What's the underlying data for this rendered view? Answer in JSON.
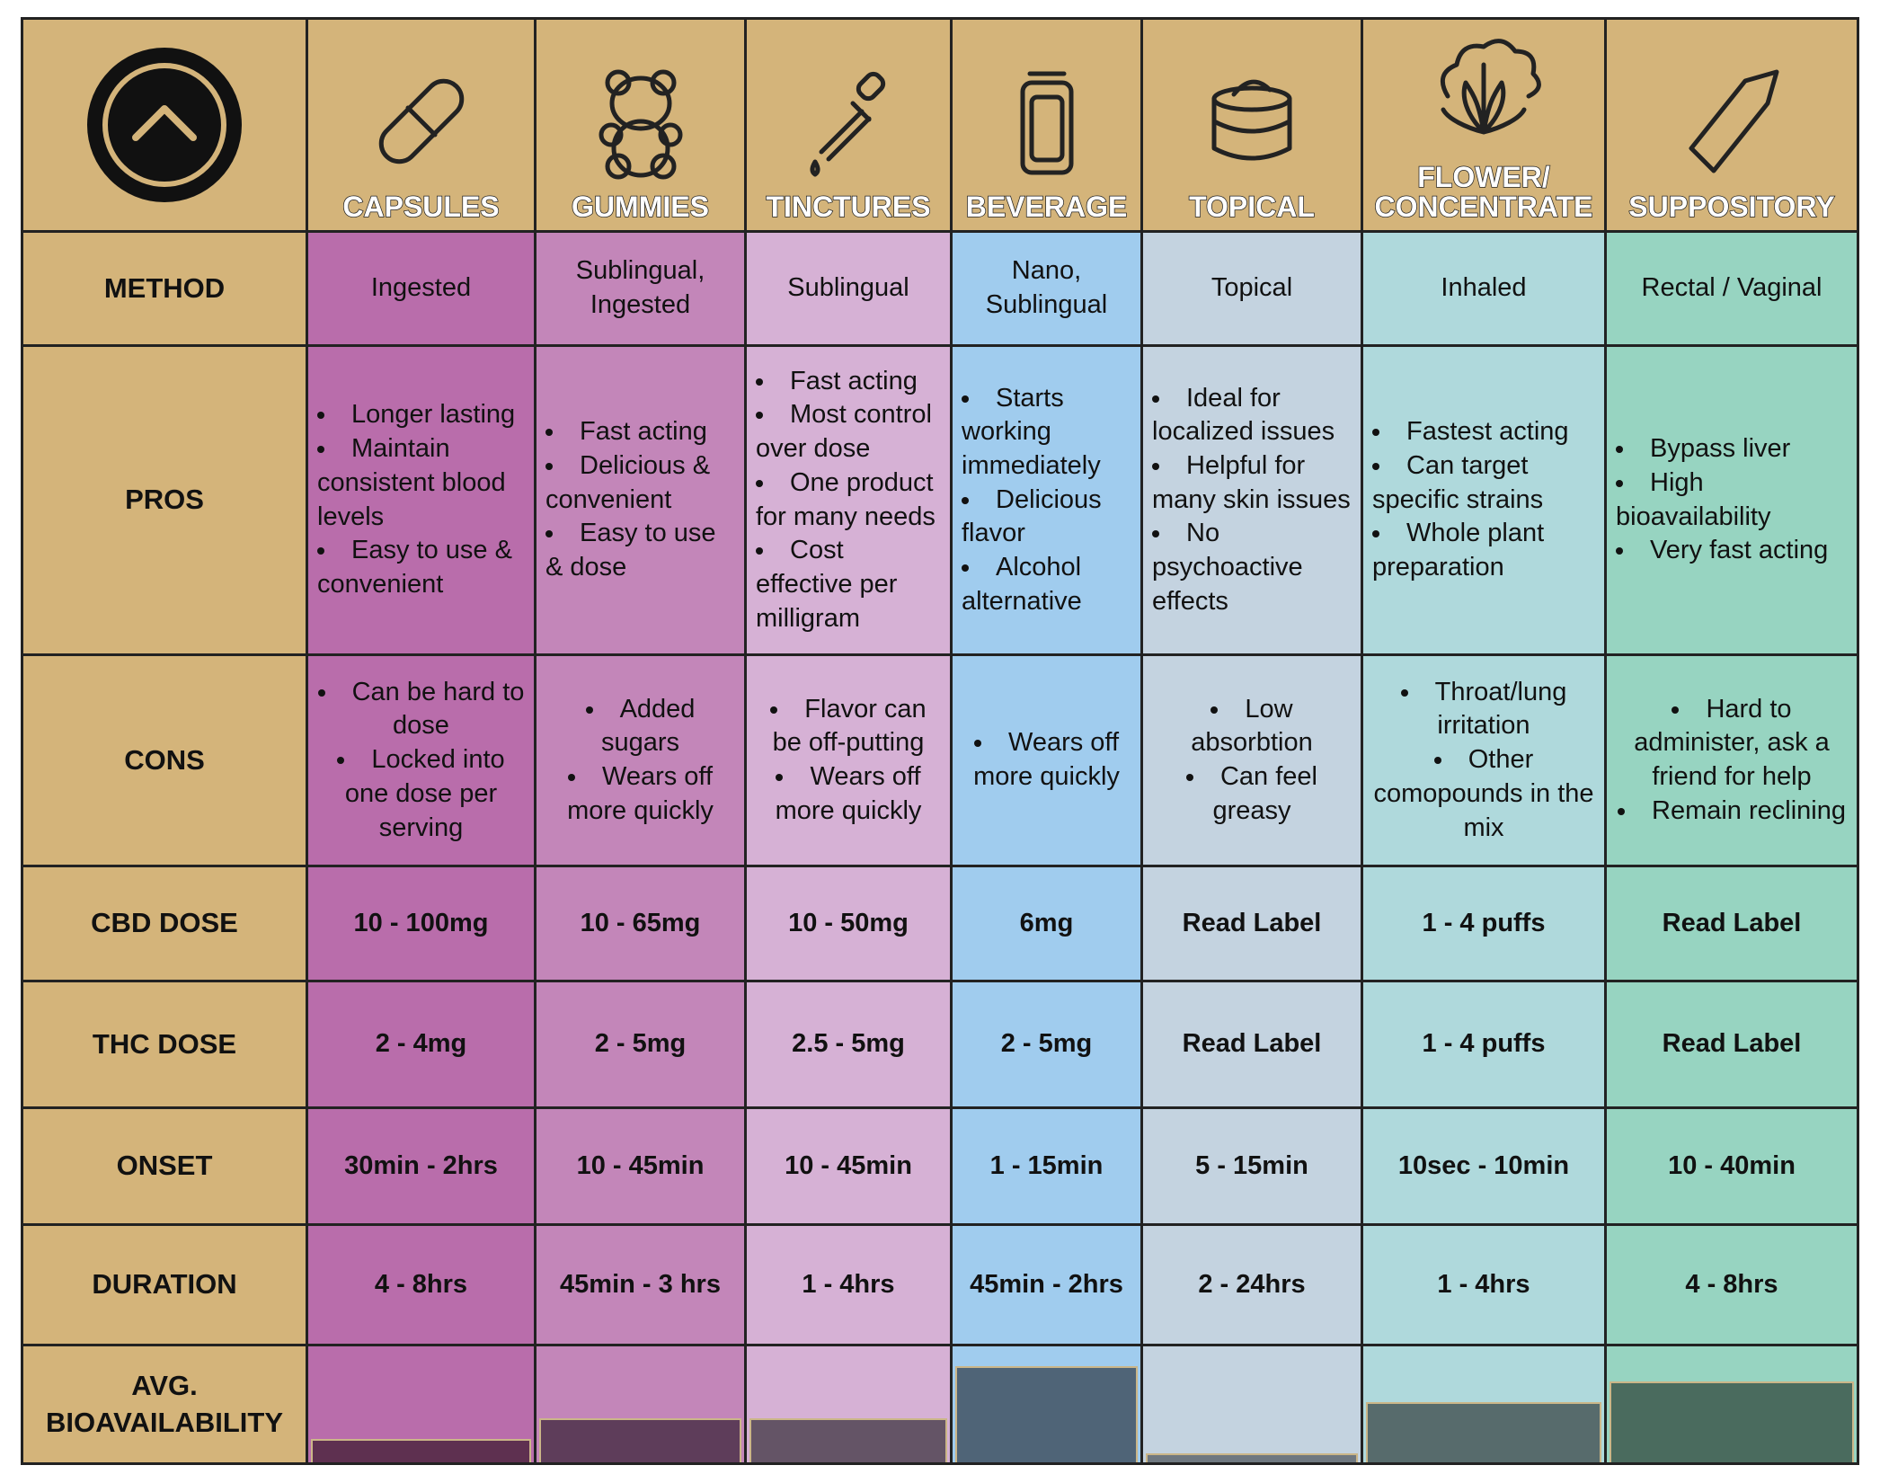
{
  "row_labels": [
    "METHOD",
    "PROS",
    "CONS",
    "CBD DOSE",
    "THC DOSE",
    "ONSET",
    "DURATION",
    "AVG. BIOAVAILABILITY"
  ],
  "header_color": "#d4b47a",
  "columns": [
    {
      "name": "CAPSULES",
      "color": "#b96dab",
      "bar_color": "#5e3050",
      "method": "Ingested",
      "pros": [
        "Longer lasting",
        "Maintain consistent blood levels",
        "Easy to use & convenient"
      ],
      "cons": [
        "Can be hard to dose",
        "Locked into one dose per serving"
      ],
      "cbd_dose": "10 - 100mg",
      "thc_dose": "2 - 4mg",
      "onset": "30min - 2hrs",
      "duration": "4 - 8hrs",
      "bioavailability": 20
    },
    {
      "name": "GUMMIES",
      "color": "#c386b9",
      "bar_color": "#5e3d5a",
      "method": "Sublingual, Ingested",
      "pros": [
        "Fast acting",
        "Delicious & convenient",
        "Easy to use & dose"
      ],
      "cons": [
        "Added sugars",
        "Wears off more quickly"
      ],
      "cbd_dose": "10 - 65mg",
      "thc_dose": "2 - 5mg",
      "onset": "10 - 45min",
      "duration": "45min - 3 hrs",
      "bioavailability": 38
    },
    {
      "name": "TINCTURES",
      "color": "#d6b1d5",
      "bar_color": "#645466",
      "method": "Sublingual",
      "pros": [
        "Fast acting",
        "Most control over dose",
        "One product for many needs",
        "Cost effective per milligram"
      ],
      "cons": [
        "Flavor can be off-putting",
        "Wears off more quickly"
      ],
      "cbd_dose": "10 - 50mg",
      "thc_dose": "2.5 - 5mg",
      "onset": "10 - 45min",
      "duration": "1 - 4hrs",
      "bioavailability": 38
    },
    {
      "name": "BEVERAGE",
      "color": "#a0ccee",
      "bar_color": "#4f6477",
      "method": "Nano, Sublingual",
      "pros": [
        "Starts working immediately",
        "Delicious flavor",
        "Alcohol alternative"
      ],
      "cons": [
        "Wears off more quickly"
      ],
      "cbd_dose": "6mg",
      "thc_dose": "2 - 5mg",
      "onset": "1 - 15min",
      "duration": "45min - 2hrs",
      "bioavailability": 83
    },
    {
      "name": "TOPICAL",
      "color": "#c4d3e0",
      "bar_color": "#6f7880",
      "method": "Topical",
      "pros": [
        "Ideal for localized issues",
        "Helpful for many skin issues",
        "No psychoactive effects"
      ],
      "cons": [
        "Low absorbtion",
        "Can feel greasy"
      ],
      "cbd_dose": "Read Label",
      "thc_dose": "Read Label",
      "onset": "5 - 15min",
      "duration": "2 - 24hrs",
      "bioavailability": 8
    },
    {
      "name": "FLOWER/ CONCENTRATE",
      "color": "#afd9dc",
      "bar_color": "#576b6c",
      "method": "Inhaled",
      "pros": [
        "Fastest acting",
        "Can target specific strains",
        "Whole plant preparation"
      ],
      "cons": [
        "Throat/lung irritation",
        "Other comopounds in the mix"
      ],
      "cbd_dose": "1 - 4 puffs",
      "thc_dose": "1 - 4 puffs",
      "onset": "10sec  - 10min",
      "duration": "1 - 4hrs",
      "bioavailability": 52
    },
    {
      "name": "SUPPOSITORY",
      "color": "#97d4c1",
      "bar_color": "#4a6b5e",
      "method": "Rectal / Vaginal",
      "pros": [
        "Bypass liver",
        "High bioavailability",
        "Very fast acting"
      ],
      "cons": [
        "Hard to administer, ask a friend for help",
        "Remain reclining"
      ],
      "cbd_dose": "Read Label",
      "thc_dose": "Read Label",
      "onset": "10 - 40min",
      "duration": "4 - 8hrs",
      "bioavailability": 70
    }
  ]
}
